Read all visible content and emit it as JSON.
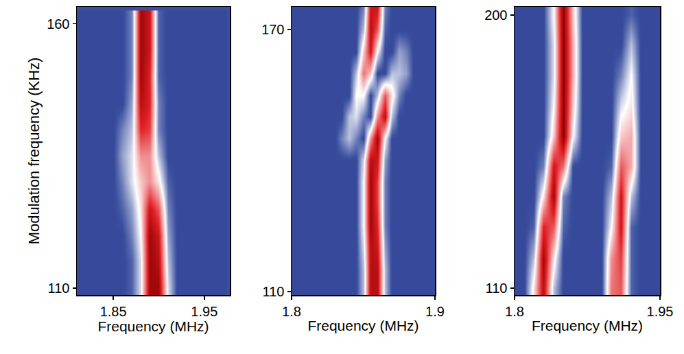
{
  "chart_data": [
    {
      "type": "heatmap",
      "xlabel": "Frequency (MHz)",
      "ylabel": "Modulation frequency (KHz)",
      "xlim": [
        1.81,
        1.978
      ],
      "ylim": [
        108.7,
        163.2
      ],
      "xticks": [
        1.85,
        1.95
      ],
      "yticks": [
        110,
        160
      ],
      "zlim": [
        0,
        1
      ],
      "x": [
        1.81,
        1.82,
        1.83,
        1.84,
        1.85,
        1.86,
        1.87,
        1.88,
        1.89,
        1.9,
        1.91,
        1.92,
        1.93,
        1.94,
        1.95,
        1.96,
        1.97
      ],
      "y": [
        110,
        115,
        120,
        125,
        130,
        135,
        140,
        145,
        150,
        155,
        160
      ],
      "z": [
        [
          0.1,
          0.1,
          0.1,
          0.1,
          0.1,
          0.1,
          0.15,
          0.35,
          0.95,
          0.95,
          0.35,
          0.1,
          0.1,
          0.1,
          0.1,
          0.1,
          0.1
        ],
        [
          0.1,
          0.1,
          0.1,
          0.1,
          0.1,
          0.1,
          0.15,
          0.35,
          0.95,
          0.9,
          0.3,
          0.1,
          0.1,
          0.1,
          0.1,
          0.1,
          0.1
        ],
        [
          0.1,
          0.1,
          0.1,
          0.1,
          0.1,
          0.1,
          0.2,
          0.4,
          0.95,
          0.85,
          0.25,
          0.1,
          0.1,
          0.1,
          0.1,
          0.1,
          0.1
        ],
        [
          0.1,
          0.1,
          0.1,
          0.1,
          0.1,
          0.15,
          0.25,
          0.45,
          0.85,
          0.7,
          0.2,
          0.1,
          0.1,
          0.1,
          0.1,
          0.1,
          0.1
        ],
        [
          0.1,
          0.1,
          0.1,
          0.1,
          0.1,
          0.2,
          0.35,
          0.5,
          0.6,
          0.45,
          0.15,
          0.1,
          0.1,
          0.1,
          0.1,
          0.1,
          0.1
        ],
        [
          0.1,
          0.1,
          0.1,
          0.1,
          0.1,
          0.25,
          0.35,
          0.6,
          0.6,
          0.3,
          0.1,
          0.1,
          0.1,
          0.1,
          0.1,
          0.1,
          0.1
        ],
        [
          0.1,
          0.1,
          0.1,
          0.1,
          0.1,
          0.2,
          0.3,
          0.8,
          0.75,
          0.2,
          0.1,
          0.1,
          0.1,
          0.1,
          0.1,
          0.1,
          0.1
        ],
        [
          0.1,
          0.1,
          0.1,
          0.1,
          0.1,
          0.1,
          0.25,
          0.9,
          0.8,
          0.2,
          0.1,
          0.1,
          0.1,
          0.1,
          0.1,
          0.1,
          0.1
        ],
        [
          0.1,
          0.1,
          0.1,
          0.1,
          0.1,
          0.1,
          0.2,
          0.95,
          0.8,
          0.15,
          0.1,
          0.1,
          0.1,
          0.1,
          0.1,
          0.1,
          0.1
        ],
        [
          0.1,
          0.1,
          0.1,
          0.1,
          0.1,
          0.1,
          0.2,
          0.95,
          0.85,
          0.15,
          0.1,
          0.1,
          0.1,
          0.1,
          0.1,
          0.1,
          0.1
        ],
        [
          0.1,
          0.1,
          0.1,
          0.1,
          0.1,
          0.1,
          0.2,
          0.95,
          0.85,
          0.15,
          0.1,
          0.1,
          0.1,
          0.1,
          0.1,
          0.1,
          0.1
        ]
      ]
    },
    {
      "type": "heatmap",
      "xlabel": "Frequency (MHz)",
      "xlim": [
        1.8,
        1.9
      ],
      "ylim": [
        109.2,
        175.2
      ],
      "xticks": [
        1.8,
        1.9
      ],
      "yticks": [
        110,
        170
      ],
      "zlim": [
        0,
        1
      ],
      "x": [
        1.8,
        1.805,
        1.81,
        1.815,
        1.82,
        1.825,
        1.83,
        1.835,
        1.84,
        1.845,
        1.85,
        1.855,
        1.86,
        1.865,
        1.87,
        1.875,
        1.88,
        1.885,
        1.89,
        1.895,
        1.9
      ],
      "y": [
        110,
        115,
        120,
        125,
        130,
        135,
        140,
        145,
        150,
        155,
        160,
        165,
        170,
        175
      ],
      "z": [
        [
          0.1,
          0.1,
          0.1,
          0.1,
          0.1,
          0.1,
          0.1,
          0.1,
          0.1,
          0.1,
          0.3,
          0.9,
          0.9,
          0.3,
          0.1,
          0.1,
          0.1,
          0.1,
          0.1,
          0.1,
          0.1
        ],
        [
          0.1,
          0.1,
          0.1,
          0.1,
          0.1,
          0.1,
          0.1,
          0.1,
          0.1,
          0.1,
          0.3,
          0.9,
          0.9,
          0.3,
          0.1,
          0.1,
          0.1,
          0.1,
          0.1,
          0.1,
          0.1
        ],
        [
          0.1,
          0.1,
          0.1,
          0.1,
          0.1,
          0.1,
          0.1,
          0.1,
          0.1,
          0.1,
          0.35,
          0.9,
          0.85,
          0.25,
          0.1,
          0.1,
          0.1,
          0.1,
          0.1,
          0.1,
          0.1
        ],
        [
          0.1,
          0.1,
          0.1,
          0.1,
          0.1,
          0.1,
          0.1,
          0.1,
          0.1,
          0.1,
          0.4,
          0.95,
          0.8,
          0.2,
          0.1,
          0.1,
          0.1,
          0.1,
          0.1,
          0.1,
          0.1
        ],
        [
          0.1,
          0.1,
          0.1,
          0.1,
          0.1,
          0.1,
          0.1,
          0.1,
          0.1,
          0.1,
          0.4,
          0.95,
          0.75,
          0.2,
          0.1,
          0.1,
          0.1,
          0.1,
          0.1,
          0.1,
          0.1
        ],
        [
          0.1,
          0.1,
          0.1,
          0.1,
          0.1,
          0.1,
          0.1,
          0.1,
          0.1,
          0.1,
          0.4,
          0.95,
          0.75,
          0.2,
          0.1,
          0.1,
          0.1,
          0.1,
          0.1,
          0.1,
          0.1
        ],
        [
          0.1,
          0.1,
          0.1,
          0.1,
          0.1,
          0.1,
          0.1,
          0.1,
          0.1,
          0.1,
          0.35,
          0.9,
          0.85,
          0.25,
          0.1,
          0.1,
          0.1,
          0.1,
          0.1,
          0.1,
          0.1
        ],
        [
          0.1,
          0.1,
          0.1,
          0.1,
          0.1,
          0.1,
          0.1,
          0.2,
          0.3,
          0.2,
          0.1,
          0.6,
          0.95,
          0.4,
          0.1,
          0.1,
          0.1,
          0.1,
          0.1,
          0.1,
          0.1
        ],
        [
          0.1,
          0.1,
          0.1,
          0.1,
          0.1,
          0.1,
          0.1,
          0.1,
          0.3,
          0.35,
          0.2,
          0.1,
          0.6,
          0.9,
          0.3,
          0.1,
          0.1,
          0.1,
          0.1,
          0.1,
          0.1
        ],
        [
          0.1,
          0.1,
          0.1,
          0.1,
          0.1,
          0.1,
          0.1,
          0.1,
          0.1,
          0.4,
          0.4,
          0.1,
          0.3,
          0.7,
          0.45,
          0.2,
          0.1,
          0.1,
          0.1,
          0.1,
          0.1
        ],
        [
          0.1,
          0.1,
          0.1,
          0.1,
          0.1,
          0.1,
          0.1,
          0.1,
          0.1,
          0.3,
          0.65,
          0.5,
          0.1,
          0.1,
          0.3,
          0.3,
          0.25,
          0.1,
          0.1,
          0.1,
          0.1
        ],
        [
          0.1,
          0.1,
          0.1,
          0.1,
          0.1,
          0.1,
          0.1,
          0.1,
          0.1,
          0.1,
          0.5,
          0.85,
          0.4,
          0.1,
          0.1,
          0.25,
          0.2,
          0.1,
          0.1,
          0.1,
          0.1
        ],
        [
          0.1,
          0.1,
          0.1,
          0.1,
          0.1,
          0.1,
          0.1,
          0.1,
          0.1,
          0.1,
          0.3,
          0.9,
          0.7,
          0.15,
          0.1,
          0.1,
          0.1,
          0.1,
          0.1,
          0.1,
          0.1
        ],
        [
          0.1,
          0.1,
          0.1,
          0.1,
          0.1,
          0.1,
          0.1,
          0.1,
          0.1,
          0.1,
          0.2,
          0.85,
          0.85,
          0.2,
          0.1,
          0.1,
          0.1,
          0.1,
          0.1,
          0.1,
          0.1
        ]
      ]
    },
    {
      "type": "heatmap",
      "xlabel": "Frequency (MHz)",
      "xlim": [
        1.8,
        1.95
      ],
      "ylim": [
        107.7,
        202.7
      ],
      "xticks": [
        1.8,
        1.95
      ],
      "yticks": [
        110,
        200
      ],
      "zlim": [
        0,
        1
      ],
      "x": [
        1.8,
        1.81,
        1.82,
        1.83,
        1.84,
        1.85,
        1.86,
        1.87,
        1.88,
        1.89,
        1.9,
        1.91,
        1.92,
        1.93,
        1.94,
        1.95
      ],
      "y": [
        110,
        120,
        130,
        140,
        150,
        160,
        170,
        180,
        190,
        200
      ],
      "z": [
        [
          0.1,
          0.1,
          0.45,
          0.9,
          0.3,
          0.1,
          0.1,
          0.1,
          0.1,
          0.1,
          0.65,
          0.7,
          0.15,
          0.1,
          0.1,
          0.1
        ],
        [
          0.1,
          0.1,
          0.3,
          0.95,
          0.45,
          0.1,
          0.1,
          0.1,
          0.1,
          0.1,
          0.6,
          0.75,
          0.15,
          0.1,
          0.1,
          0.1
        ],
        [
          0.1,
          0.1,
          0.15,
          0.8,
          0.7,
          0.15,
          0.1,
          0.1,
          0.1,
          0.1,
          0.4,
          0.85,
          0.15,
          0.1,
          0.1,
          0.1
        ],
        [
          0.1,
          0.1,
          0.1,
          0.45,
          0.95,
          0.2,
          0.1,
          0.1,
          0.1,
          0.1,
          0.3,
          0.85,
          0.3,
          0.1,
          0.1,
          0.1
        ],
        [
          0.1,
          0.1,
          0.1,
          0.2,
          0.85,
          0.65,
          0.1,
          0.1,
          0.1,
          0.1,
          0.15,
          0.7,
          0.55,
          0.1,
          0.1,
          0.1
        ],
        [
          0.1,
          0.1,
          0.1,
          0.1,
          0.5,
          1.0,
          0.4,
          0.1,
          0.1,
          0.1,
          0.1,
          0.5,
          0.55,
          0.1,
          0.1,
          0.1
        ],
        [
          0.1,
          0.1,
          0.1,
          0.1,
          0.4,
          1.0,
          0.5,
          0.1,
          0.1,
          0.1,
          0.1,
          0.35,
          0.45,
          0.1,
          0.1,
          0.1
        ],
        [
          0.1,
          0.1,
          0.1,
          0.1,
          0.35,
          1.0,
          0.55,
          0.1,
          0.1,
          0.1,
          0.1,
          0.2,
          0.4,
          0.1,
          0.1,
          0.1
        ],
        [
          0.1,
          0.1,
          0.1,
          0.1,
          0.35,
          1.0,
          0.55,
          0.1,
          0.1,
          0.1,
          0.1,
          0.1,
          0.3,
          0.1,
          0.1,
          0.1
        ],
        [
          0.1,
          0.1,
          0.1,
          0.1,
          0.4,
          1.0,
          0.5,
          0.1,
          0.1,
          0.1,
          0.1,
          0.1,
          0.15,
          0.1,
          0.1,
          0.1
        ]
      ]
    }
  ]
}
